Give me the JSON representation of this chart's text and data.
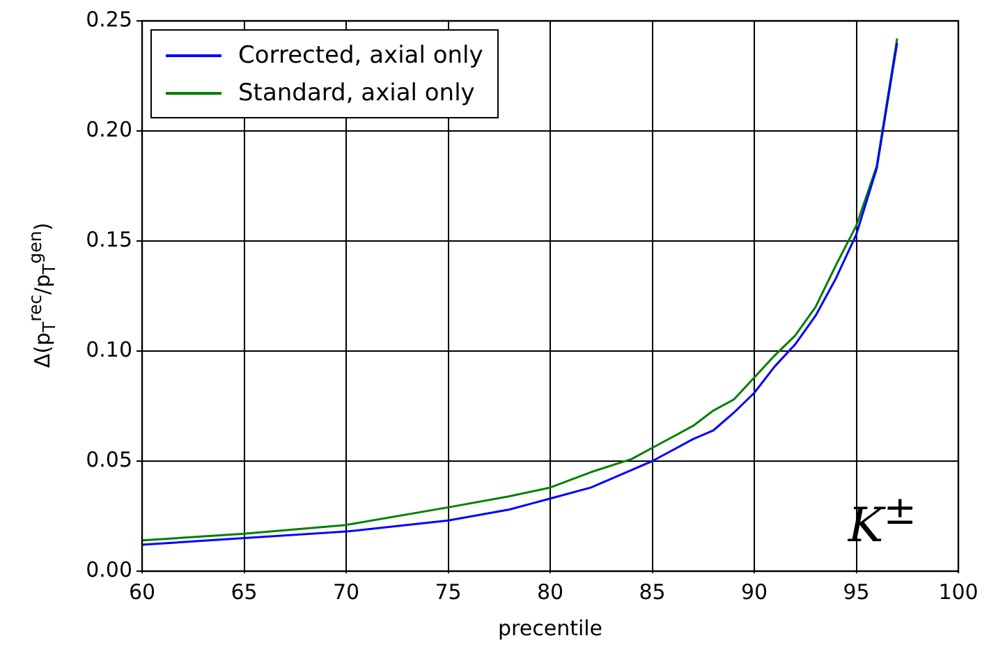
{
  "chart_data": {
    "type": "line",
    "xlabel": "precentile",
    "ylabel": "Δ(p$_{T}$$^{rec}$/p$_{T}$$^{gen}$)",
    "x": [
      60,
      65,
      70,
      75,
      78,
      80,
      82,
      84,
      85,
      86,
      87,
      88,
      89,
      90,
      91,
      92,
      93,
      94,
      95,
      96,
      97
    ],
    "series": [
      {
        "name": "Corrected, axial only",
        "color": "#0000ff",
        "values": [
          0.012,
          0.015,
          0.018,
          0.023,
          0.028,
          0.033,
          0.038,
          0.046,
          0.05,
          0.055,
          0.06,
          0.064,
          0.072,
          0.081,
          0.093,
          0.103,
          0.116,
          0.133,
          0.153,
          0.183,
          0.24
        ]
      },
      {
        "name": "Standard, axial only",
        "color": "#008000",
        "values": [
          0.014,
          0.017,
          0.021,
          0.029,
          0.034,
          0.038,
          0.045,
          0.051,
          0.056,
          0.061,
          0.066,
          0.073,
          0.078,
          0.088,
          0.098,
          0.107,
          0.12,
          0.139,
          0.157,
          0.184,
          0.242
        ]
      }
    ],
    "xlim": [
      60,
      100
    ],
    "xticks": [
      60,
      65,
      70,
      75,
      80,
      85,
      90,
      95,
      100
    ],
    "ylim": [
      0,
      0.25
    ],
    "yticks": [
      {
        "value": 0,
        "label": "0.00"
      },
      {
        "value": 0.05,
        "label": "0.05"
      },
      {
        "value": 0.1,
        "label": "0.10"
      },
      {
        "value": 0.15,
        "label": "0.15"
      },
      {
        "value": 0.2,
        "label": "0.20"
      },
      {
        "value": 0.25,
        "label": "0.25"
      }
    ],
    "grid": true,
    "legend": "top left",
    "line_style": "solid",
    "marker": "none",
    "annotations": [
      "K$^{±}$"
    ]
  }
}
